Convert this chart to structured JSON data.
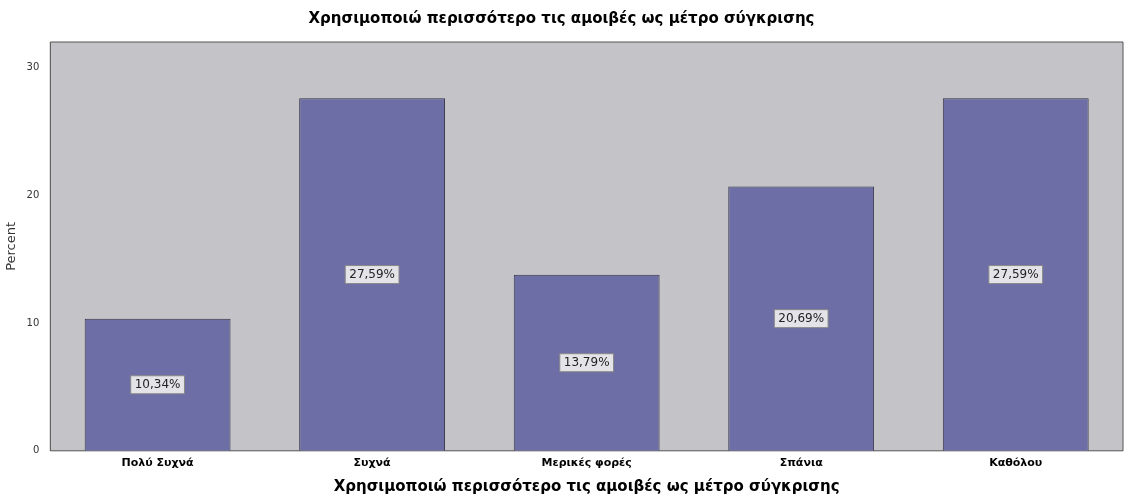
{
  "chart_data": {
    "type": "bar",
    "title": "Χρησιμοποιώ περισσότερο τις αμοιβές ως μέτρο σύγκρισης",
    "xlabel": "Χρησιμοποιώ περισσότερο τις αμοιβές ως μέτρο σύγκρισης",
    "ylabel": "Percent",
    "categories": [
      "Πολύ Συχνά",
      "Συχνά",
      "Μερικές φορές",
      "Σπάνια",
      "Καθόλου"
    ],
    "values": [
      10.34,
      27.59,
      13.79,
      20.69,
      27.59
    ],
    "value_labels": [
      "10,34%",
      "27,59%",
      "13,79%",
      "20,69%",
      "27,59%"
    ],
    "color": "#6e6ea6",
    "ylim": [
      0,
      32
    ],
    "yticks": [
      0,
      10,
      20,
      30
    ]
  }
}
